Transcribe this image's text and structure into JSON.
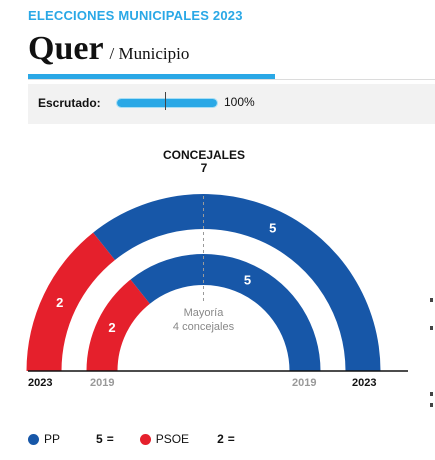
{
  "header": {
    "kicker": "ELECCIONES MUNICIPALES 2023",
    "title": "Quer",
    "subtitle": "/ Municipio"
  },
  "scrutiny": {
    "label": "Escrutado:",
    "value_text": "100%",
    "progress": 1.0
  },
  "council": {
    "title": "CONCEJALES",
    "total": "7",
    "majority_line1": "Mayoría",
    "majority_line2": "4 concejales"
  },
  "years": {
    "current": "2023",
    "previous": "2019"
  },
  "colors": {
    "accent": "#2aa8e6",
    "pp": "#1757a8",
    "psoe": "#e5202c"
  },
  "chart_data": {
    "type": "semicircle",
    "total_seats": 7,
    "majority": 4,
    "series": [
      {
        "name": "2023",
        "values": [
          2,
          5
        ]
      },
      {
        "name": "2019",
        "values": [
          2,
          5
        ]
      }
    ],
    "categories": [
      "PSOE",
      "PP"
    ],
    "colors": [
      "#e5202c",
      "#1757a8"
    ]
  },
  "legend": [
    {
      "name": "PP",
      "seats": "5",
      "change": "=",
      "color": "#1757a8"
    },
    {
      "name": "PSOE",
      "seats": "2",
      "change": "=",
      "color": "#e5202c"
    }
  ]
}
